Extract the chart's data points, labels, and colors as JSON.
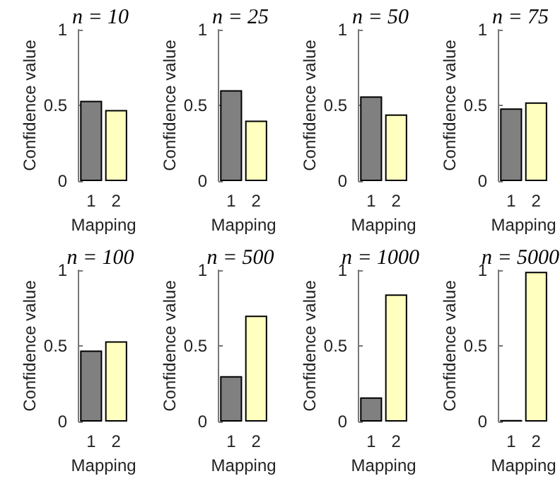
{
  "chart_data": [
    {
      "type": "bar",
      "title": "n = 10",
      "xlabel": "Mapping",
      "ylabel": "Confidence value",
      "categories": [
        "1",
        "2"
      ],
      "values": [
        0.53,
        0.47
      ],
      "colors": [
        "#808080",
        "#ffffbf"
      ],
      "ylim": [
        0,
        1
      ],
      "yticks": [
        0,
        0.5,
        1
      ]
    },
    {
      "type": "bar",
      "title": "n = 25",
      "xlabel": "Mapping",
      "ylabel": "Confidence value",
      "categories": [
        "1",
        "2"
      ],
      "values": [
        0.6,
        0.4
      ],
      "colors": [
        "#808080",
        "#ffffbf"
      ],
      "ylim": [
        0,
        1
      ],
      "yticks": [
        0,
        0.5,
        1
      ]
    },
    {
      "type": "bar",
      "title": "n = 50",
      "xlabel": "Mapping",
      "ylabel": "Confidence value",
      "categories": [
        "1",
        "2"
      ],
      "values": [
        0.56,
        0.44
      ],
      "colors": [
        "#808080",
        "#ffffbf"
      ],
      "ylim": [
        0,
        1
      ],
      "yticks": [
        0,
        0.5,
        1
      ]
    },
    {
      "type": "bar",
      "title": "n = 75",
      "xlabel": "Mapping",
      "ylabel": "Confidence value",
      "categories": [
        "1",
        "2"
      ],
      "values": [
        0.48,
        0.52
      ],
      "colors": [
        "#808080",
        "#ffffbf"
      ],
      "ylim": [
        0,
        1
      ],
      "yticks": [
        0,
        0.5,
        1
      ]
    },
    {
      "type": "bar",
      "title": "n = 100",
      "xlabel": "Mapping",
      "ylabel": "Confidence value",
      "categories": [
        "1",
        "2"
      ],
      "values": [
        0.47,
        0.53
      ],
      "colors": [
        "#808080",
        "#ffffbf"
      ],
      "ylim": [
        0,
        1
      ],
      "yticks": [
        0,
        0.5,
        1
      ]
    },
    {
      "type": "bar",
      "title": "n = 500",
      "xlabel": "Mapping",
      "ylabel": "Confidence value",
      "categories": [
        "1",
        "2"
      ],
      "values": [
        0.3,
        0.7
      ],
      "colors": [
        "#808080",
        "#ffffbf"
      ],
      "ylim": [
        0,
        1
      ],
      "yticks": [
        0,
        0.5,
        1
      ]
    },
    {
      "type": "bar",
      "title": "n = 1000",
      "xlabel": "Mapping",
      "ylabel": "Confidence value",
      "categories": [
        "1",
        "2"
      ],
      "values": [
        0.16,
        0.84
      ],
      "colors": [
        "#808080",
        "#ffffbf"
      ],
      "ylim": [
        0,
        1
      ],
      "yticks": [
        0,
        0.5,
        1
      ]
    },
    {
      "type": "bar",
      "title": "n = 5000",
      "xlabel": "Mapping",
      "ylabel": "Confidence value",
      "categories": [
        "1",
        "2"
      ],
      "values": [
        0.01,
        0.99
      ],
      "colors": [
        "#808080",
        "#ffffbf"
      ],
      "ylim": [
        0,
        1
      ],
      "yticks": [
        0,
        0.5,
        1
      ]
    }
  ]
}
